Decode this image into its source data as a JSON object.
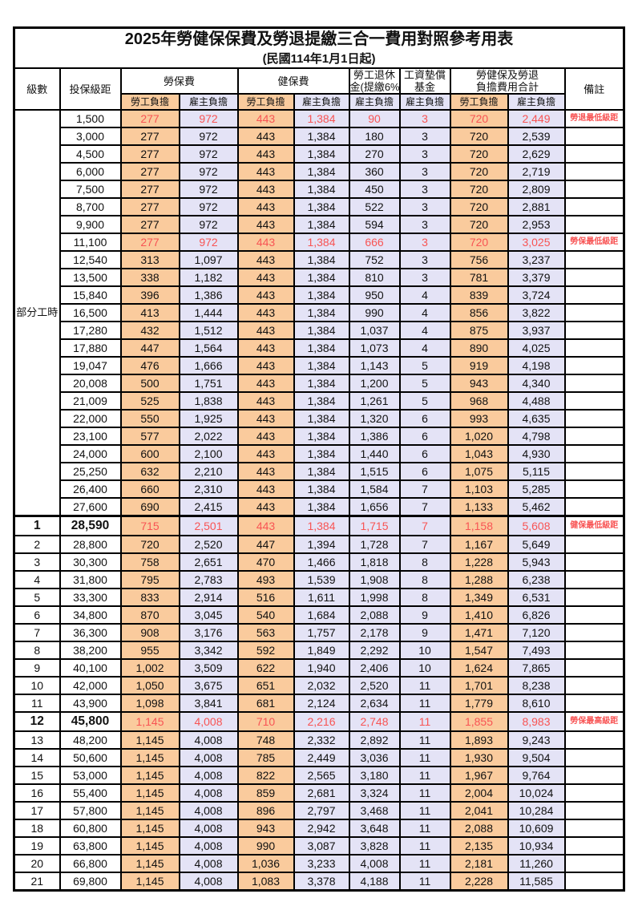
{
  "title": "2025年勞健保保費及勞退提繳三合一費用對照參考用表",
  "subtitle": "(民國114年1月1日起)",
  "header": {
    "level": "級數",
    "salary_bracket": "投保級距",
    "labor_insurance": "勞保費",
    "health_insurance": "健保費",
    "pension_line1": "勞工退休",
    "pension_line2": "金(提繳6%)",
    "wage_fund_line1": "工資墊償",
    "wage_fund_line2": "基金",
    "total_line1": "勞健保及勞退",
    "total_line2": "負擔費用合計",
    "remark": "備註",
    "employee_burden": "勞工負擔",
    "employer_burden": "雇主負擔"
  },
  "part_time_label": "部分工時",
  "part_time_rowspan": 23,
  "colors": {
    "employee_bg": "#FACB9D",
    "employer_bg": "#E4E3F6",
    "highlight_red": "#F85454",
    "border": "#000000"
  },
  "rows": [
    {
      "level": "",
      "salary": "1,500",
      "labor_emp": "277",
      "labor_er": "972",
      "health_emp": "443",
      "health_er": "1,384",
      "pension_er": "90",
      "fund_er": "3",
      "total_emp": "720",
      "total_er": "2,449",
      "remark": "勞退最低級距",
      "red": true,
      "bold": false
    },
    {
      "level": "",
      "salary": "3,000",
      "labor_emp": "277",
      "labor_er": "972",
      "health_emp": "443",
      "health_er": "1,384",
      "pension_er": "180",
      "fund_er": "3",
      "total_emp": "720",
      "total_er": "2,539",
      "remark": "",
      "red": false,
      "bold": false
    },
    {
      "level": "",
      "salary": "4,500",
      "labor_emp": "277",
      "labor_er": "972",
      "health_emp": "443",
      "health_er": "1,384",
      "pension_er": "270",
      "fund_er": "3",
      "total_emp": "720",
      "total_er": "2,629",
      "remark": "",
      "red": false,
      "bold": false
    },
    {
      "level": "",
      "salary": "6,000",
      "labor_emp": "277",
      "labor_er": "972",
      "health_emp": "443",
      "health_er": "1,384",
      "pension_er": "360",
      "fund_er": "3",
      "total_emp": "720",
      "total_er": "2,719",
      "remark": "",
      "red": false,
      "bold": false
    },
    {
      "level": "",
      "salary": "7,500",
      "labor_emp": "277",
      "labor_er": "972",
      "health_emp": "443",
      "health_er": "1,384",
      "pension_er": "450",
      "fund_er": "3",
      "total_emp": "720",
      "total_er": "2,809",
      "remark": "",
      "red": false,
      "bold": false
    },
    {
      "level": "",
      "salary": "8,700",
      "labor_emp": "277",
      "labor_er": "972",
      "health_emp": "443",
      "health_er": "1,384",
      "pension_er": "522",
      "fund_er": "3",
      "total_emp": "720",
      "total_er": "2,881",
      "remark": "",
      "red": false,
      "bold": false
    },
    {
      "level": "",
      "salary": "9,900",
      "labor_emp": "277",
      "labor_er": "972",
      "health_emp": "443",
      "health_er": "1,384",
      "pension_er": "594",
      "fund_er": "3",
      "total_emp": "720",
      "total_er": "2,953",
      "remark": "",
      "red": false,
      "bold": false
    },
    {
      "level": "",
      "salary": "11,100",
      "labor_emp": "277",
      "labor_er": "972",
      "health_emp": "443",
      "health_er": "1,384",
      "pension_er": "666",
      "fund_er": "3",
      "total_emp": "720",
      "total_er": "3,025",
      "remark": "勞保最低級距",
      "red": true,
      "bold": false
    },
    {
      "level": "",
      "salary": "12,540",
      "labor_emp": "313",
      "labor_er": "1,097",
      "health_emp": "443",
      "health_er": "1,384",
      "pension_er": "752",
      "fund_er": "3",
      "total_emp": "756",
      "total_er": "3,237",
      "remark": "",
      "red": false,
      "bold": false
    },
    {
      "level": "",
      "salary": "13,500",
      "labor_emp": "338",
      "labor_er": "1,182",
      "health_emp": "443",
      "health_er": "1,384",
      "pension_er": "810",
      "fund_er": "3",
      "total_emp": "781",
      "total_er": "3,379",
      "remark": "",
      "red": false,
      "bold": false
    },
    {
      "level": "",
      "salary": "15,840",
      "labor_emp": "396",
      "labor_er": "1,386",
      "health_emp": "443",
      "health_er": "1,384",
      "pension_er": "950",
      "fund_er": "4",
      "total_emp": "839",
      "total_er": "3,724",
      "remark": "",
      "red": false,
      "bold": false
    },
    {
      "level": "",
      "salary": "16,500",
      "labor_emp": "413",
      "labor_er": "1,444",
      "health_emp": "443",
      "health_er": "1,384",
      "pension_er": "990",
      "fund_er": "4",
      "total_emp": "856",
      "total_er": "3,822",
      "remark": "",
      "red": false,
      "bold": false
    },
    {
      "level": "",
      "salary": "17,280",
      "labor_emp": "432",
      "labor_er": "1,512",
      "health_emp": "443",
      "health_er": "1,384",
      "pension_er": "1,037",
      "fund_er": "4",
      "total_emp": "875",
      "total_er": "3,937",
      "remark": "",
      "red": false,
      "bold": false
    },
    {
      "level": "",
      "salary": "17,880",
      "labor_emp": "447",
      "labor_er": "1,564",
      "health_emp": "443",
      "health_er": "1,384",
      "pension_er": "1,073",
      "fund_er": "4",
      "total_emp": "890",
      "total_er": "4,025",
      "remark": "",
      "red": false,
      "bold": false
    },
    {
      "level": "",
      "salary": "19,047",
      "labor_emp": "476",
      "labor_er": "1,666",
      "health_emp": "443",
      "health_er": "1,384",
      "pension_er": "1,143",
      "fund_er": "5",
      "total_emp": "919",
      "total_er": "4,198",
      "remark": "",
      "red": false,
      "bold": false
    },
    {
      "level": "",
      "salary": "20,008",
      "labor_emp": "500",
      "labor_er": "1,751",
      "health_emp": "443",
      "health_er": "1,384",
      "pension_er": "1,200",
      "fund_er": "5",
      "total_emp": "943",
      "total_er": "4,340",
      "remark": "",
      "red": false,
      "bold": false
    },
    {
      "level": "",
      "salary": "21,009",
      "labor_emp": "525",
      "labor_er": "1,838",
      "health_emp": "443",
      "health_er": "1,384",
      "pension_er": "1,261",
      "fund_er": "5",
      "total_emp": "968",
      "total_er": "4,488",
      "remark": "",
      "red": false,
      "bold": false
    },
    {
      "level": "",
      "salary": "22,000",
      "labor_emp": "550",
      "labor_er": "1,925",
      "health_emp": "443",
      "health_er": "1,384",
      "pension_er": "1,320",
      "fund_er": "6",
      "total_emp": "993",
      "total_er": "4,635",
      "remark": "",
      "red": false,
      "bold": false
    },
    {
      "level": "",
      "salary": "23,100",
      "labor_emp": "577",
      "labor_er": "2,022",
      "health_emp": "443",
      "health_er": "1,384",
      "pension_er": "1,386",
      "fund_er": "6",
      "total_emp": "1,020",
      "total_er": "4,798",
      "remark": "",
      "red": false,
      "bold": false
    },
    {
      "level": "",
      "salary": "24,000",
      "labor_emp": "600",
      "labor_er": "2,100",
      "health_emp": "443",
      "health_er": "1,384",
      "pension_er": "1,440",
      "fund_er": "6",
      "total_emp": "1,043",
      "total_er": "4,930",
      "remark": "",
      "red": false,
      "bold": false
    },
    {
      "level": "",
      "salary": "25,250",
      "labor_emp": "632",
      "labor_er": "2,210",
      "health_emp": "443",
      "health_er": "1,384",
      "pension_er": "1,515",
      "fund_er": "6",
      "total_emp": "1,075",
      "total_er": "5,115",
      "remark": "",
      "red": false,
      "bold": false
    },
    {
      "level": "",
      "salary": "26,400",
      "labor_emp": "660",
      "labor_er": "2,310",
      "health_emp": "443",
      "health_er": "1,384",
      "pension_er": "1,584",
      "fund_er": "7",
      "total_emp": "1,103",
      "total_er": "5,285",
      "remark": "",
      "red": false,
      "bold": false
    },
    {
      "level": "",
      "salary": "27,600",
      "labor_emp": "690",
      "labor_er": "2,415",
      "health_emp": "443",
      "health_er": "1,384",
      "pension_er": "1,656",
      "fund_er": "7",
      "total_emp": "1,133",
      "total_er": "5,462",
      "remark": "",
      "red": false,
      "bold": false
    },
    {
      "level": "1",
      "salary": "28,590",
      "labor_emp": "715",
      "labor_er": "2,501",
      "health_emp": "443",
      "health_er": "1,384",
      "pension_er": "1,715",
      "fund_er": "7",
      "total_emp": "1,158",
      "total_er": "5,608",
      "remark": "健保最低級距",
      "red": true,
      "bold": true,
      "sect": true
    },
    {
      "level": "2",
      "salary": "28,800",
      "labor_emp": "720",
      "labor_er": "2,520",
      "health_emp": "447",
      "health_er": "1,394",
      "pension_er": "1,728",
      "fund_er": "7",
      "total_emp": "1,167",
      "total_er": "5,649",
      "remark": "",
      "red": false,
      "bold": false
    },
    {
      "level": "3",
      "salary": "30,300",
      "labor_emp": "758",
      "labor_er": "2,651",
      "health_emp": "470",
      "health_er": "1,466",
      "pension_er": "1,818",
      "fund_er": "8",
      "total_emp": "1,228",
      "total_er": "5,943",
      "remark": "",
      "red": false,
      "bold": false
    },
    {
      "level": "4",
      "salary": "31,800",
      "labor_emp": "795",
      "labor_er": "2,783",
      "health_emp": "493",
      "health_er": "1,539",
      "pension_er": "1,908",
      "fund_er": "8",
      "total_emp": "1,288",
      "total_er": "6,238",
      "remark": "",
      "red": false,
      "bold": false
    },
    {
      "level": "5",
      "salary": "33,300",
      "labor_emp": "833",
      "labor_er": "2,914",
      "health_emp": "516",
      "health_er": "1,611",
      "pension_er": "1,998",
      "fund_er": "8",
      "total_emp": "1,349",
      "total_er": "6,531",
      "remark": "",
      "red": false,
      "bold": false
    },
    {
      "level": "6",
      "salary": "34,800",
      "labor_emp": "870",
      "labor_er": "3,045",
      "health_emp": "540",
      "health_er": "1,684",
      "pension_er": "2,088",
      "fund_er": "9",
      "total_emp": "1,410",
      "total_er": "6,826",
      "remark": "",
      "red": false,
      "bold": false
    },
    {
      "level": "7",
      "salary": "36,300",
      "labor_emp": "908",
      "labor_er": "3,176",
      "health_emp": "563",
      "health_er": "1,757",
      "pension_er": "2,178",
      "fund_er": "9",
      "total_emp": "1,471",
      "total_er": "7,120",
      "remark": "",
      "red": false,
      "bold": false
    },
    {
      "level": "8",
      "salary": "38,200",
      "labor_emp": "955",
      "labor_er": "3,342",
      "health_emp": "592",
      "health_er": "1,849",
      "pension_er": "2,292",
      "fund_er": "10",
      "total_emp": "1,547",
      "total_er": "7,493",
      "remark": "",
      "red": false,
      "bold": false
    },
    {
      "level": "9",
      "salary": "40,100",
      "labor_emp": "1,002",
      "labor_er": "3,509",
      "health_emp": "622",
      "health_er": "1,940",
      "pension_er": "2,406",
      "fund_er": "10",
      "total_emp": "1,624",
      "total_er": "7,865",
      "remark": "",
      "red": false,
      "bold": false
    },
    {
      "level": "10",
      "salary": "42,000",
      "labor_emp": "1,050",
      "labor_er": "3,675",
      "health_emp": "651",
      "health_er": "2,032",
      "pension_er": "2,520",
      "fund_er": "11",
      "total_emp": "1,701",
      "total_er": "8,238",
      "remark": "",
      "red": false,
      "bold": false
    },
    {
      "level": "11",
      "salary": "43,900",
      "labor_emp": "1,098",
      "labor_er": "3,841",
      "health_emp": "681",
      "health_er": "2,124",
      "pension_er": "2,634",
      "fund_er": "11",
      "total_emp": "1,779",
      "total_er": "8,610",
      "remark": "",
      "red": false,
      "bold": false
    },
    {
      "level": "12",
      "salary": "45,800",
      "labor_emp": "1,145",
      "labor_er": "4,008",
      "health_emp": "710",
      "health_er": "2,216",
      "pension_er": "2,748",
      "fund_er": "11",
      "total_emp": "1,855",
      "total_er": "8,983",
      "remark": "勞保最高級距",
      "red": true,
      "bold": true
    },
    {
      "level": "13",
      "salary": "48,200",
      "labor_emp": "1,145",
      "labor_er": "4,008",
      "health_emp": "748",
      "health_er": "2,332",
      "pension_er": "2,892",
      "fund_er": "11",
      "total_emp": "1,893",
      "total_er": "9,243",
      "remark": "",
      "red": false,
      "bold": false
    },
    {
      "level": "14",
      "salary": "50,600",
      "labor_emp": "1,145",
      "labor_er": "4,008",
      "health_emp": "785",
      "health_er": "2,449",
      "pension_er": "3,036",
      "fund_er": "11",
      "total_emp": "1,930",
      "total_er": "9,504",
      "remark": "",
      "red": false,
      "bold": false
    },
    {
      "level": "15",
      "salary": "53,000",
      "labor_emp": "1,145",
      "labor_er": "4,008",
      "health_emp": "822",
      "health_er": "2,565",
      "pension_er": "3,180",
      "fund_er": "11",
      "total_emp": "1,967",
      "total_er": "9,764",
      "remark": "",
      "red": false,
      "bold": false
    },
    {
      "level": "16",
      "salary": "55,400",
      "labor_emp": "1,145",
      "labor_er": "4,008",
      "health_emp": "859",
      "health_er": "2,681",
      "pension_er": "3,324",
      "fund_er": "11",
      "total_emp": "2,004",
      "total_er": "10,024",
      "remark": "",
      "red": false,
      "bold": false
    },
    {
      "level": "17",
      "salary": "57,800",
      "labor_emp": "1,145",
      "labor_er": "4,008",
      "health_emp": "896",
      "health_er": "2,797",
      "pension_er": "3,468",
      "fund_er": "11",
      "total_emp": "2,041",
      "total_er": "10,284",
      "remark": "",
      "red": false,
      "bold": false
    },
    {
      "level": "18",
      "salary": "60,800",
      "labor_emp": "1,145",
      "labor_er": "4,008",
      "health_emp": "943",
      "health_er": "2,942",
      "pension_er": "3,648",
      "fund_er": "11",
      "total_emp": "2,088",
      "total_er": "10,609",
      "remark": "",
      "red": false,
      "bold": false
    },
    {
      "level": "19",
      "salary": "63,800",
      "labor_emp": "1,145",
      "labor_er": "4,008",
      "health_emp": "990",
      "health_er": "3,087",
      "pension_er": "3,828",
      "fund_er": "11",
      "total_emp": "2,135",
      "total_er": "10,934",
      "remark": "",
      "red": false,
      "bold": false
    },
    {
      "level": "20",
      "salary": "66,800",
      "labor_emp": "1,145",
      "labor_er": "4,008",
      "health_emp": "1,036",
      "health_er": "3,233",
      "pension_er": "4,008",
      "fund_er": "11",
      "total_emp": "2,181",
      "total_er": "11,260",
      "remark": "",
      "red": false,
      "bold": false
    },
    {
      "level": "21",
      "salary": "69,800",
      "labor_emp": "1,145",
      "labor_er": "4,008",
      "health_emp": "1,083",
      "health_er": "3,378",
      "pension_er": "4,188",
      "fund_er": "11",
      "total_emp": "2,228",
      "total_er": "11,585",
      "remark": "",
      "red": false,
      "bold": false
    }
  ]
}
